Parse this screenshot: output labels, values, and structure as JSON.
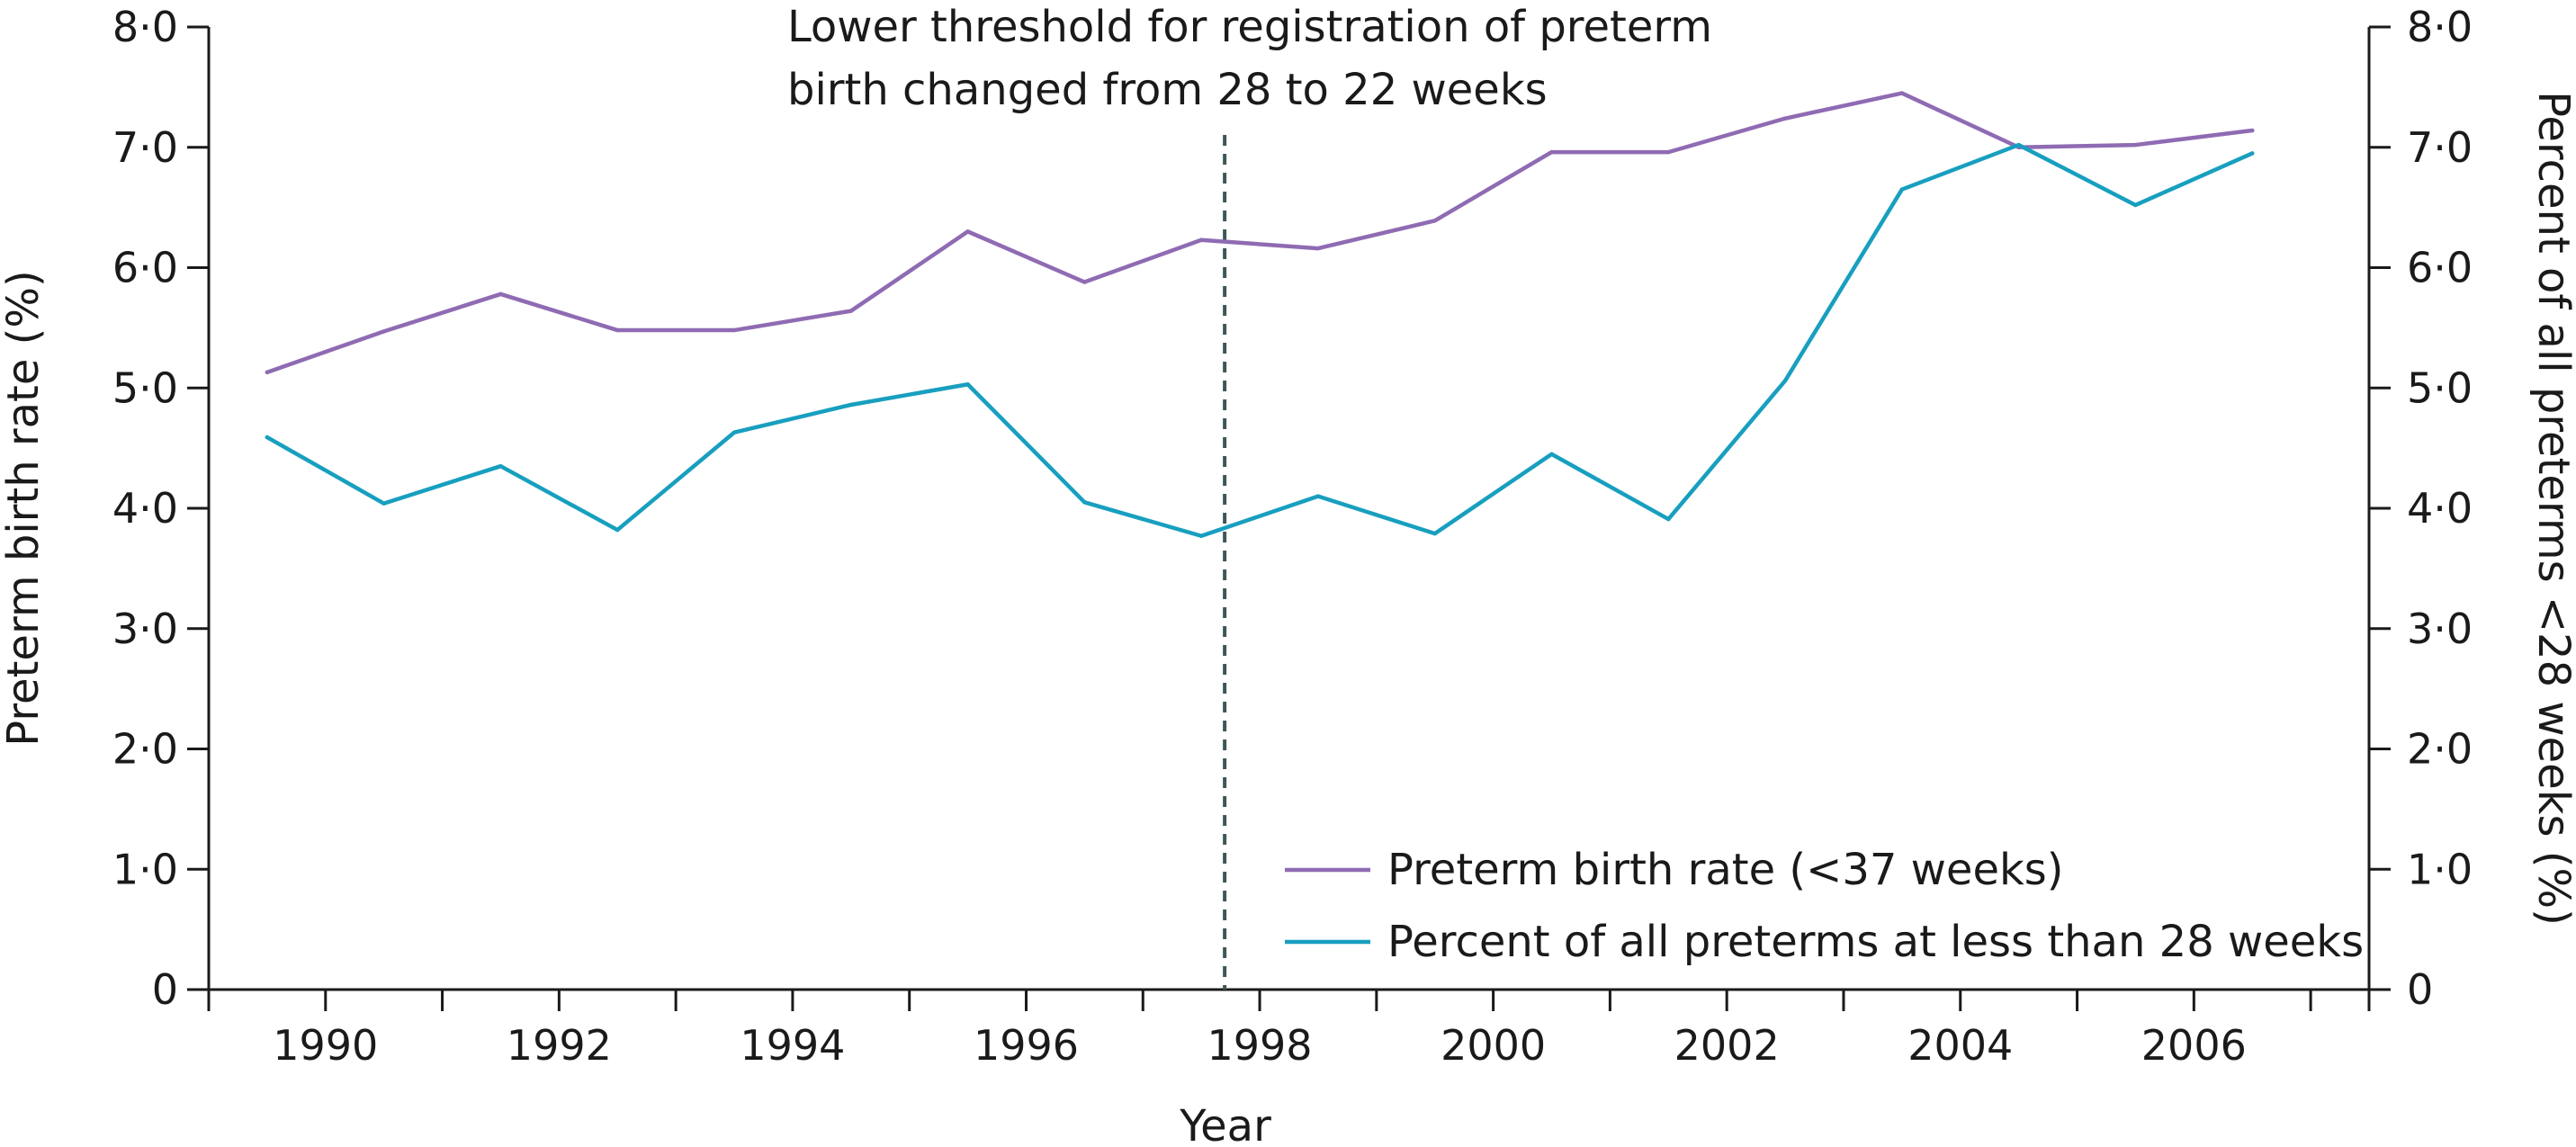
{
  "chart_data": {
    "type": "line",
    "annotation": {
      "line1": "Lower threshold for registration of preterm",
      "line2": "birth changed from 28 to 22 weeks",
      "x": 1997.7
    },
    "xlabel": "Year",
    "ylabel_left": "Preterm birth rate (%)",
    "ylabel_right": "Percent of all preterms <28 weeks (%)",
    "xlim": [
      1989,
      2007.5
    ],
    "ylim": [
      0,
      8
    ],
    "x_ticks": [
      1990,
      1992,
      1994,
      1996,
      1998,
      2000,
      2002,
      2004,
      2006
    ],
    "x_tick_labels": [
      "1990",
      "1992",
      "1994",
      "1996",
      "1998",
      "2000",
      "2002",
      "2004",
      "2006"
    ],
    "x_minor_ticks": [
      1991,
      1993,
      1995,
      1997,
      1999,
      2001,
      2003,
      2005,
      2007
    ],
    "y_ticks": [
      0,
      1,
      2,
      3,
      4,
      5,
      6,
      7,
      8
    ],
    "y_tick_labels": [
      "0",
      "1·0",
      "2·0",
      "3·0",
      "4·0",
      "5·0",
      "6·0",
      "7·0",
      "8·0"
    ],
    "x": [
      1989.5,
      1990.5,
      1991.5,
      1992.5,
      1993.5,
      1994.5,
      1995.5,
      1996.5,
      1997.5,
      1998.5,
      1999.5,
      2000.5,
      2001.5,
      2002.5,
      2003.5,
      2004.5,
      2005.5,
      2006.5
    ],
    "series": [
      {
        "name": "Preterm birth rate (<37 weeks)",
        "color": "#8f6bb3",
        "values": [
          5.13,
          5.47,
          5.78,
          5.48,
          5.48,
          5.64,
          6.3,
          5.88,
          6.23,
          6.16,
          6.39,
          6.96,
          6.96,
          7.24,
          7.45,
          7.0,
          7.02,
          7.14
        ]
      },
      {
        "name": "Percent of all preterms at less than 28 weeks",
        "color": "#189fbf",
        "values": [
          4.59,
          4.04,
          4.35,
          3.82,
          4.63,
          4.86,
          5.03,
          4.05,
          3.77,
          4.1,
          3.79,
          4.45,
          3.91,
          5.06,
          6.65,
          7.02,
          6.52,
          6.95
        ]
      }
    ],
    "legend": {
      "position": "bottom-right",
      "entries": [
        "Preterm birth rate (<37 weeks)",
        "Percent of all preterms at less than 28 weeks"
      ]
    },
    "grid": false
  }
}
